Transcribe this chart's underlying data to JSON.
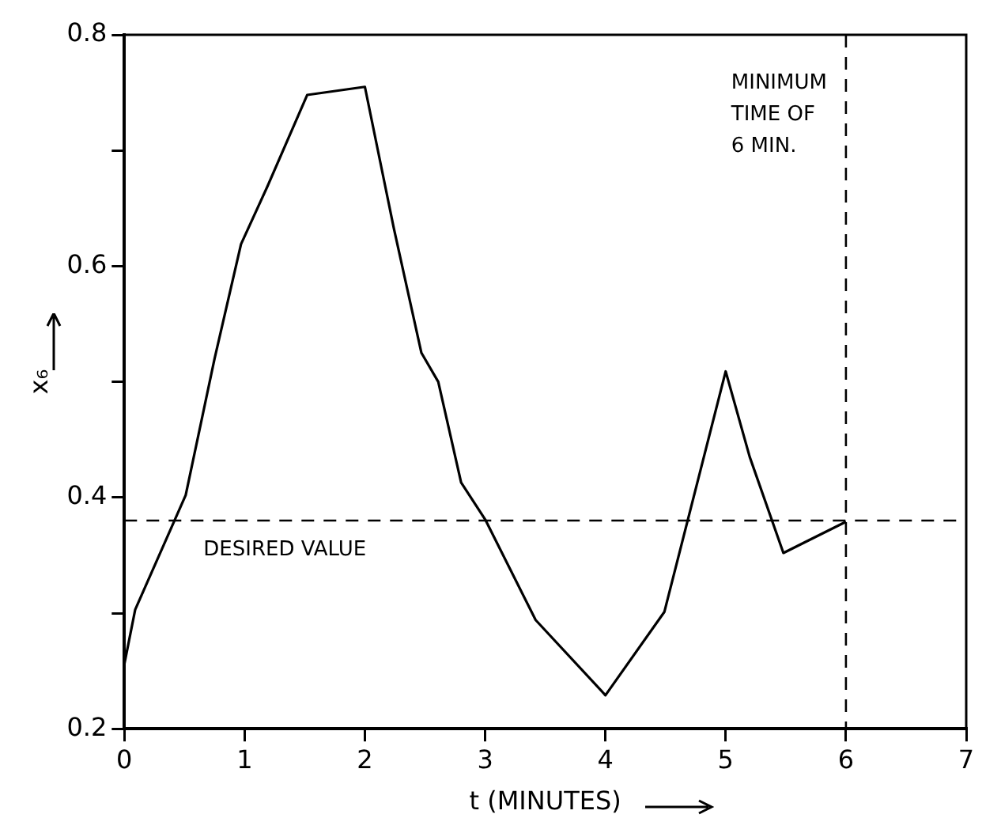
{
  "chart_data": {
    "type": "line",
    "xlabel": "t (MINUTES)",
    "ylabel": "x₆",
    "xlim": [
      0,
      7
    ],
    "xticks": [
      0,
      1,
      2,
      3,
      4,
      5,
      6,
      7
    ],
    "ylim": [
      0.2,
      0.8
    ],
    "yticks": [
      0.2,
      {
        "value": 0.3,
        "label": null
      },
      0.4,
      {
        "value": 0.5,
        "label": null
      },
      0.6,
      {
        "value": 0.7,
        "label": null
      },
      0.8
    ],
    "series": [
      {
        "color": "#000000",
        "x": [
          0,
          0.09,
          0.51,
          0.75,
          0.97,
          1.19,
          1.52,
          2.0,
          2.24,
          2.47,
          2.61,
          2.8,
          3.0,
          3.42,
          4.0,
          4.49,
          5.0,
          5.2,
          5.48,
          6.0
        ],
        "values": [
          0.256,
          0.303,
          0.402,
          0.52,
          0.619,
          0.669,
          0.748,
          0.755,
          0.633,
          0.525,
          0.5,
          0.413,
          0.381,
          0.294,
          0.229,
          0.301,
          0.509,
          0.435,
          0.352,
          0.379
        ]
      }
    ],
    "ref_lines": [
      {
        "axis": "y",
        "value": 0.38,
        "label": "DESIRED VALUE",
        "line_style": "dashed"
      },
      {
        "axis": "x",
        "value": 6,
        "label": "MINIMUM\nTIME OF\n6 MIN.",
        "line_style": "dashed"
      }
    ],
    "grid": false,
    "legend": false,
    "marker": "none",
    "line_style": "solid"
  }
}
